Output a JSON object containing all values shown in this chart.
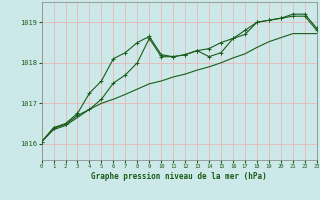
{
  "title": "Graphe pression niveau de la mer (hPa)",
  "bg_color": "#cde8e8",
  "grid_color": "#b8d8d8",
  "line_color": "#1a5c1a",
  "x_min": 0,
  "x_max": 23,
  "y_min": 1015.6,
  "y_max": 1019.5,
  "yticks": [
    1016,
    1017,
    1018,
    1019
  ],
  "xticks": [
    0,
    1,
    2,
    3,
    4,
    5,
    6,
    7,
    8,
    9,
    10,
    11,
    12,
    13,
    14,
    15,
    16,
    17,
    18,
    19,
    20,
    21,
    22,
    23
  ],
  "series1_x": [
    0,
    1,
    2,
    3,
    4,
    5,
    6,
    7,
    8,
    9,
    10,
    11,
    12,
    13,
    14,
    15,
    16,
    17,
    18,
    19,
    20,
    21,
    22,
    23
  ],
  "series1_y": [
    1016.05,
    1016.4,
    1016.5,
    1016.75,
    1017.25,
    1017.55,
    1018.1,
    1018.25,
    1018.5,
    1018.65,
    1018.2,
    1018.15,
    1018.2,
    1018.3,
    1018.15,
    1018.25,
    1018.6,
    1018.7,
    1019.0,
    1019.05,
    1019.1,
    1019.2,
    1019.2,
    1018.85
  ],
  "series2_x": [
    0,
    1,
    2,
    3,
    4,
    5,
    6,
    7,
    8,
    9,
    10,
    11,
    12,
    13,
    14,
    15,
    16,
    17,
    18,
    19,
    20,
    21,
    22,
    23
  ],
  "series2_y": [
    1016.05,
    1016.38,
    1016.48,
    1016.7,
    1016.85,
    1017.1,
    1017.5,
    1017.7,
    1018.0,
    1018.6,
    1018.15,
    1018.15,
    1018.2,
    1018.3,
    1018.35,
    1018.5,
    1018.6,
    1018.8,
    1019.0,
    1019.05,
    1019.1,
    1019.15,
    1019.15,
    1018.8
  ],
  "series3_x": [
    0,
    1,
    2,
    3,
    4,
    5,
    6,
    7,
    8,
    9,
    10,
    11,
    12,
    13,
    14,
    15,
    16,
    17,
    18,
    19,
    20,
    21,
    22,
    23
  ],
  "series3_y": [
    1016.05,
    1016.35,
    1016.45,
    1016.65,
    1016.85,
    1017.0,
    1017.1,
    1017.22,
    1017.35,
    1017.48,
    1017.55,
    1017.65,
    1017.72,
    1017.82,
    1017.9,
    1018.0,
    1018.12,
    1018.22,
    1018.38,
    1018.52,
    1018.62,
    1018.72,
    1018.72,
    1018.72
  ]
}
